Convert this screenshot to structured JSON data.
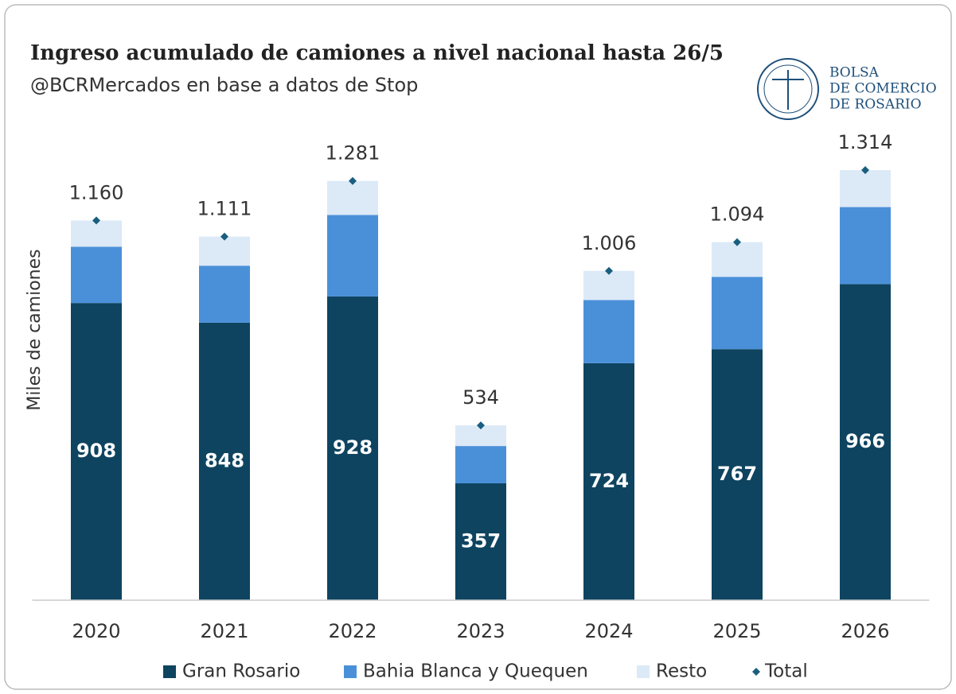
{
  "logo": [
    "BOLSA",
    "DE COMERCIO",
    "DE ROSARIO"
  ],
  "chart_data": {
    "type": "stacked_bar",
    "title": "Ingreso acumulado de camiones a nivel nacional hasta 26/5",
    "subtitle": "@BCRMercados en base a datos de Stop",
    "y_label": "Miles de camiones",
    "categories": [
      "2020",
      "2021",
      "2022",
      "2023",
      "2024",
      "2025",
      "2026"
    ],
    "ylim": [
      0,
      1450
    ],
    "series": [
      {
        "name": "Gran Rosario",
        "color": "#0e4460",
        "values": [
          908,
          848,
          928,
          357,
          724,
          767,
          966
        ]
      },
      {
        "name": "Bahia Blanca y Quequen",
        "color": "#4a90d9",
        "values": [
          172,
          174,
          249,
          114,
          193,
          221,
          235
        ]
      },
      {
        "name": "Resto",
        "color": "#dce9f7",
        "values": [
          80,
          89,
          104,
          63,
          89,
          106,
          113
        ]
      },
      {
        "name": "Total",
        "color": "#1a5e80",
        "values": [
          1160,
          1111,
          1281,
          534,
          1006,
          1094,
          1314
        ],
        "value_labels": [
          "1.160",
          "1.111",
          "1.281",
          "534",
          "1.006",
          "1.094",
          "1.314"
        ]
      }
    ]
  }
}
